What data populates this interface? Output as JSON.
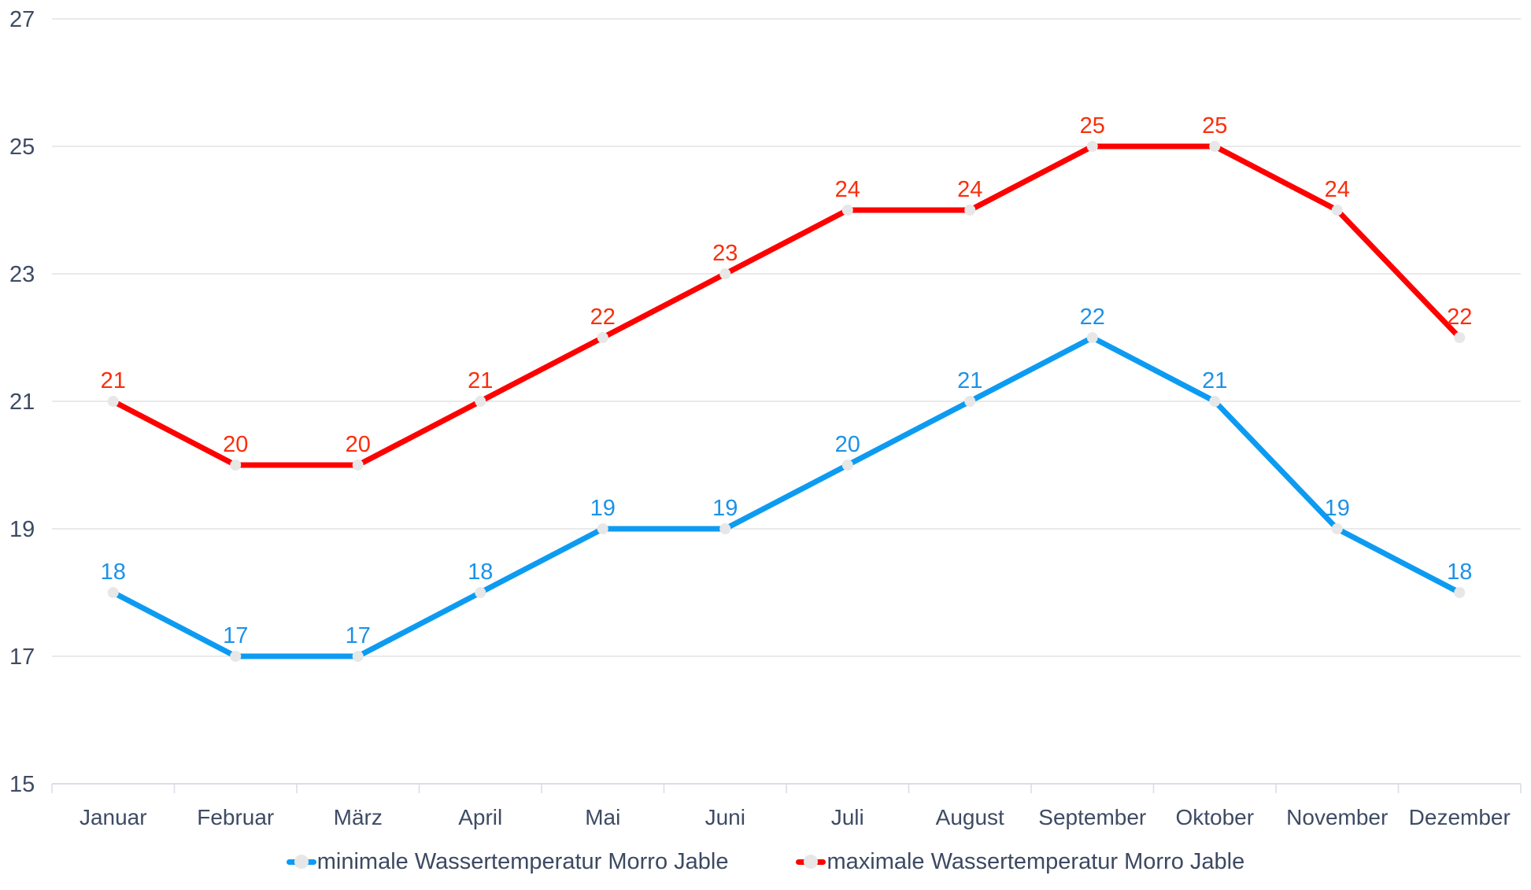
{
  "chart_data": {
    "type": "line",
    "categories": [
      "Januar",
      "Februar",
      "März",
      "April",
      "Mai",
      "Juni",
      "Juli",
      "August",
      "September",
      "Oktober",
      "November",
      "Dezember"
    ],
    "series": [
      {
        "name": "minimale Wassertemperatur Morro Jable",
        "color": "#0d9bf2",
        "label_color": "#1c92e8",
        "values": [
          18,
          17,
          17,
          18,
          19,
          19,
          20,
          21,
          22,
          21,
          19,
          18
        ]
      },
      {
        "name": "maximale Wassertemperatur Morro Jable",
        "color": "#fe0000",
        "label_color": "#fa2e0c",
        "values": [
          21,
          20,
          20,
          21,
          22,
          23,
          24,
          24,
          25,
          25,
          24,
          22
        ]
      }
    ],
    "ylim": [
      15,
      27
    ],
    "yticks": [
      15,
      17,
      19,
      21,
      23,
      25,
      27
    ],
    "grid": true,
    "legend_position": "bottom",
    "axis_label_color": "#3e4b64",
    "gridline_color": "#e3e3e3",
    "axis_line_color": "#d9dee6",
    "marker_color": "#e7e7e7"
  }
}
